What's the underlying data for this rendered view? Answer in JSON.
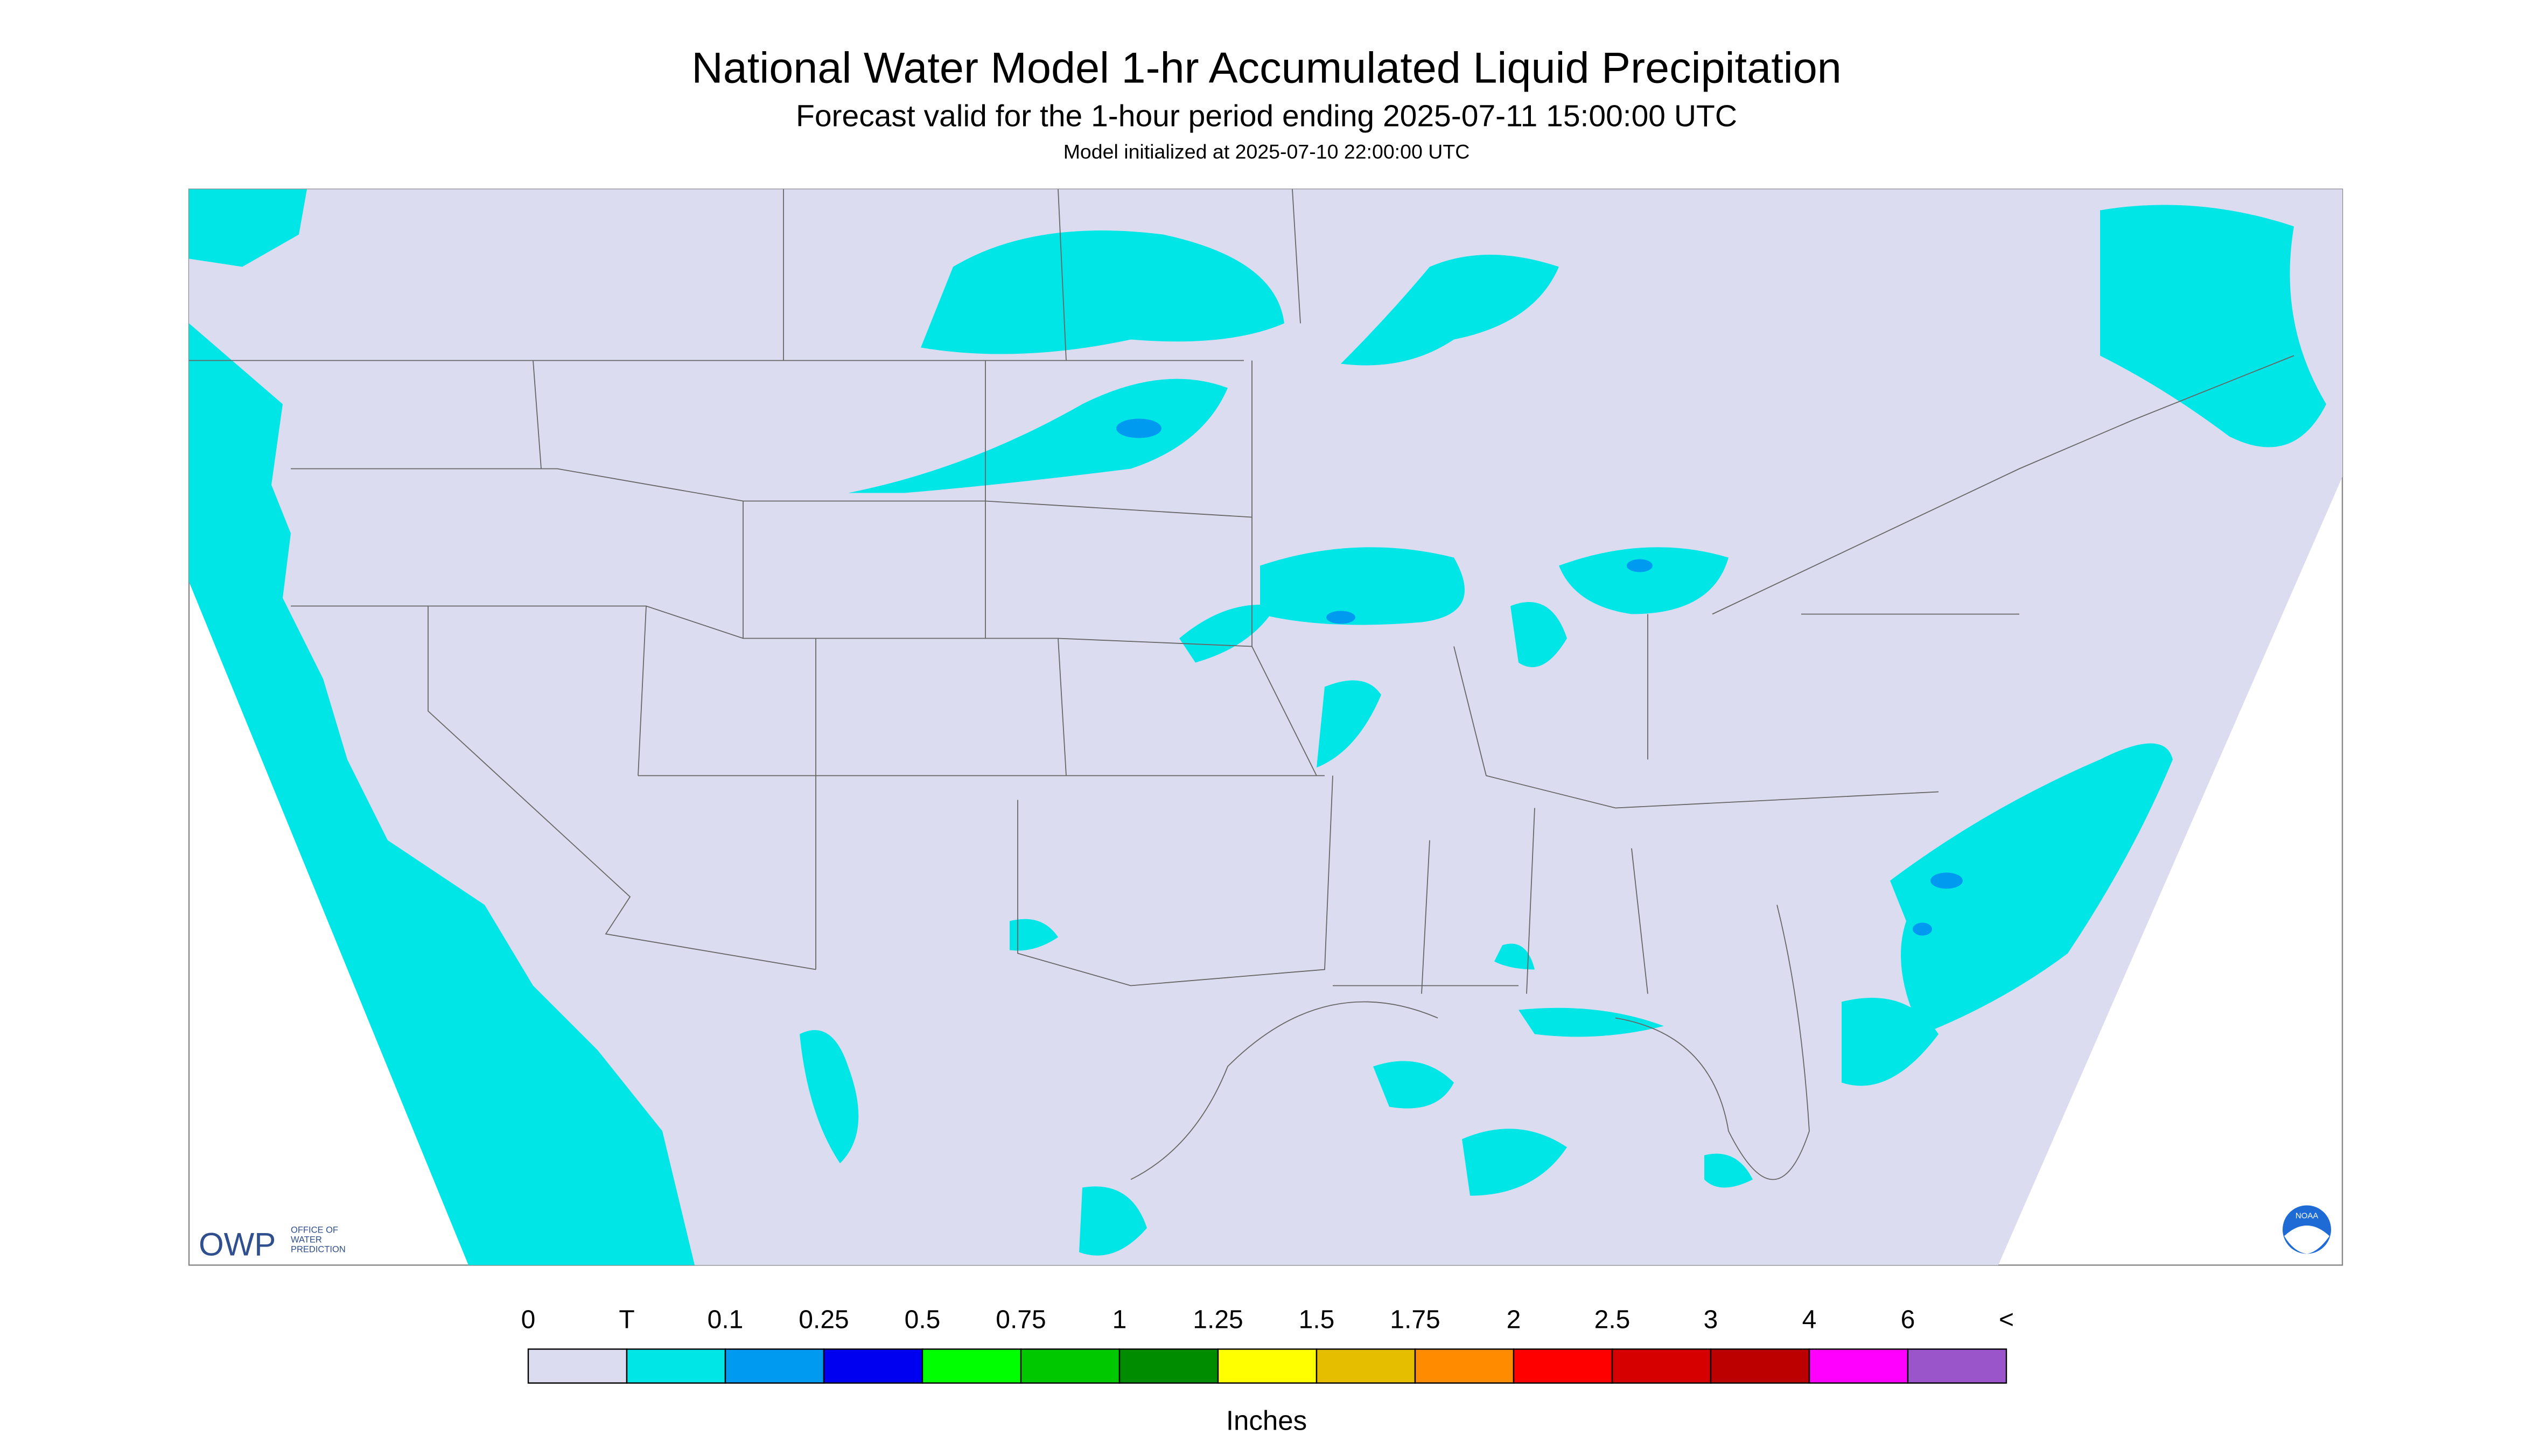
{
  "header": {
    "title": "National Water Model 1-hr Accumulated Liquid Precipitation",
    "subtitle": "Forecast valid for the 1-hour period ending 2025-07-11 15:00:00 UTC",
    "initialized": "Model initialized at 2025-07-10 22:00:00 UTC"
  },
  "legend": {
    "labels": [
      "0",
      "T",
      "0.1",
      "0.25",
      "0.5",
      "0.75",
      "1",
      "1.25",
      "1.5",
      "1.75",
      "2",
      "2.5",
      "3",
      "4",
      "6",
      "<"
    ],
    "colors": [
      "#dcdcf0",
      "#00e6e6",
      "#009bf0",
      "#0000f0",
      "#00ff00",
      "#00c800",
      "#008c00",
      "#ffff00",
      "#e6be00",
      "#ff8c00",
      "#ff0000",
      "#d60000",
      "#bc0000",
      "#ff00ff",
      "#9955c9"
    ],
    "unit": "Inches"
  },
  "logos": {
    "owp": "OWP",
    "owp_name": [
      "OFFICE OF",
      "WATER",
      "PREDICTION"
    ],
    "noaa": "NOAA"
  }
}
